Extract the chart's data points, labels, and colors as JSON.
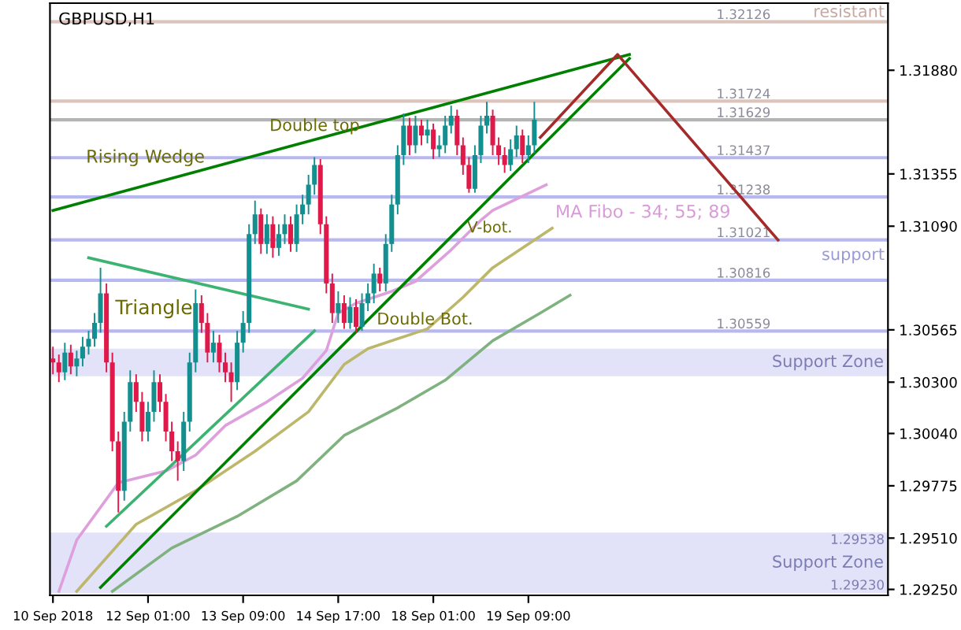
{
  "chart_data": {
    "type": "candlestick",
    "title": "GBPUSD,H1",
    "categories": [
      "10 Sep 2018",
      null,
      null,
      null,
      null,
      null,
      null,
      null,
      null,
      null,
      null,
      null,
      null,
      null,
      null,
      null,
      "12 Sep 01:00",
      null,
      null,
      null,
      null,
      null,
      null,
      null,
      null,
      null,
      null,
      null,
      null,
      null,
      null,
      null,
      "13 Sep 09:00",
      null,
      null,
      null,
      null,
      null,
      null,
      null,
      null,
      null,
      null,
      null,
      null,
      null,
      null,
      null,
      "14 Sep 17:00",
      null,
      null,
      null,
      null,
      null,
      null,
      null,
      null,
      null,
      null,
      null,
      null,
      null,
      null,
      null,
      "18 Sep 01:00",
      null,
      null,
      null,
      null,
      null,
      null,
      null,
      null,
      null,
      null,
      null,
      null,
      null,
      null,
      null,
      "19 Sep 09:00",
      null,
      null,
      null,
      null,
      null,
      null,
      null,
      null,
      null,
      null,
      null,
      null,
      null,
      null,
      null,
      null,
      null,
      null,
      null,
      null,
      null,
      null,
      null,
      null,
      null,
      null,
      null,
      null,
      null,
      null,
      null,
      null,
      null,
      null,
      null,
      null,
      null,
      null,
      null,
      null,
      null,
      null,
      null,
      null,
      null,
      null,
      null,
      null,
      null,
      null,
      null,
      null,
      null,
      null,
      null,
      null,
      null,
      null,
      null,
      null
    ],
    "ohlc": [
      [
        1.3042,
        1.3048,
        1.3034,
        1.304
      ],
      [
        1.304,
        1.3044,
        1.303,
        1.3035
      ],
      [
        1.3035,
        1.305,
        1.3031,
        1.3045
      ],
      [
        1.3045,
        1.3049,
        1.3034,
        1.3038
      ],
      [
        1.3038,
        1.3046,
        1.3033,
        1.3042
      ],
      [
        1.3042,
        1.3053,
        1.3038,
        1.3048
      ],
      [
        1.3048,
        1.3056,
        1.3044,
        1.3052
      ],
      [
        1.3052,
        1.3065,
        1.3048,
        1.306
      ],
      [
        1.306,
        1.3088,
        1.3055,
        1.3075
      ],
      [
        1.3075,
        1.308,
        1.3035,
        1.304
      ],
      [
        1.304,
        1.3045,
        1.2995,
        1.3
      ],
      [
        1.3,
        1.3005,
        1.2964,
        1.2975
      ],
      [
        1.2975,
        1.3015,
        1.297,
        1.301
      ],
      [
        1.301,
        1.3036,
        1.3005,
        1.303
      ],
      [
        1.303,
        1.3034,
        1.3015,
        1.302
      ],
      [
        1.302,
        1.3025,
        1.3,
        1.3005
      ],
      [
        1.3005,
        1.302,
        1.3,
        1.3015
      ],
      [
        1.3015,
        1.3036,
        1.301,
        1.303
      ],
      [
        1.303,
        1.3034,
        1.3015,
        1.302
      ],
      [
        1.302,
        1.3024,
        1.3,
        1.3005
      ],
      [
        1.3005,
        1.301,
        1.299,
        1.2995
      ],
      [
        1.2995,
        1.3,
        1.298,
        1.299
      ],
      [
        1.299,
        1.3015,
        1.2985,
        1.301
      ],
      [
        1.301,
        1.3045,
        1.3005,
        1.304
      ],
      [
        1.304,
        1.3077,
        1.3035,
        1.307
      ],
      [
        1.307,
        1.3074,
        1.3055,
        1.306
      ],
      [
        1.306,
        1.3065,
        1.304,
        1.3045
      ],
      [
        1.3045,
        1.3056,
        1.304,
        1.305
      ],
      [
        1.305,
        1.3054,
        1.3035,
        1.304
      ],
      [
        1.304,
        1.3045,
        1.303,
        1.3035
      ],
      [
        1.3035,
        1.304,
        1.302,
        1.303
      ],
      [
        1.303,
        1.3056,
        1.3026,
        1.305
      ],
      [
        1.305,
        1.3066,
        1.3045,
        1.306
      ],
      [
        1.306,
        1.311,
        1.3055,
        1.3105
      ],
      [
        1.3105,
        1.3122,
        1.31,
        1.3115
      ],
      [
        1.3115,
        1.3118,
        1.3095,
        1.31
      ],
      [
        1.31,
        1.3115,
        1.3095,
        1.311
      ],
      [
        1.311,
        1.3114,
        1.3093,
        1.3098
      ],
      [
        1.3098,
        1.311,
        1.3094,
        1.3105
      ],
      [
        1.3105,
        1.3115,
        1.31,
        1.311
      ],
      [
        1.311,
        1.3114,
        1.3096,
        1.31
      ],
      [
        1.31,
        1.312,
        1.3096,
        1.3115
      ],
      [
        1.3115,
        1.3125,
        1.311,
        1.312
      ],
      [
        1.312,
        1.3135,
        1.3115,
        1.313
      ],
      [
        1.313,
        1.3144,
        1.3125,
        1.314
      ],
      [
        1.314,
        1.3143,
        1.3105,
        1.311
      ],
      [
        1.311,
        1.3114,
        1.3075,
        1.308
      ],
      [
        1.308,
        1.3085,
        1.306,
        1.3065
      ],
      [
        1.3065,
        1.3076,
        1.306,
        1.307
      ],
      [
        1.307,
        1.3074,
        1.3057,
        1.306
      ],
      [
        1.306,
        1.3073,
        1.3057,
        1.3068
      ],
      [
        1.3068,
        1.3072,
        1.3055,
        1.3058
      ],
      [
        1.3058,
        1.3075,
        1.3056,
        1.307
      ],
      [
        1.307,
        1.308,
        1.3066,
        1.3075
      ],
      [
        1.3075,
        1.309,
        1.307,
        1.3085
      ],
      [
        1.3085,
        1.3088,
        1.3076,
        1.308
      ],
      [
        1.308,
        1.3105,
        1.3076,
        1.31
      ],
      [
        1.31,
        1.3125,
        1.3096,
        1.312
      ],
      [
        1.312,
        1.315,
        1.3115,
        1.3145
      ],
      [
        1.3145,
        1.3166,
        1.314,
        1.316
      ],
      [
        1.316,
        1.3164,
        1.3145,
        1.315
      ],
      [
        1.315,
        1.3165,
        1.3146,
        1.316
      ],
      [
        1.316,
        1.3163,
        1.315,
        1.3155
      ],
      [
        1.3155,
        1.3163,
        1.3151,
        1.3158
      ],
      [
        1.3158,
        1.3161,
        1.3143,
        1.3148
      ],
      [
        1.3148,
        1.3155,
        1.3144,
        1.315
      ],
      [
        1.315,
        1.3165,
        1.3146,
        1.316
      ],
      [
        1.316,
        1.317,
        1.3156,
        1.3165
      ],
      [
        1.3165,
        1.3168,
        1.3145,
        1.315
      ],
      [
        1.315,
        1.3154,
        1.3135,
        1.314
      ],
      [
        1.314,
        1.3144,
        1.3126,
        1.3128
      ],
      [
        1.3128,
        1.315,
        1.3126,
        1.3145
      ],
      [
        1.3145,
        1.3165,
        1.3141,
        1.316
      ],
      [
        1.316,
        1.3172,
        1.3156,
        1.3165
      ],
      [
        1.3165,
        1.3168,
        1.3145,
        1.315
      ],
      [
        1.315,
        1.3154,
        1.314,
        1.3145
      ],
      [
        1.3145,
        1.3149,
        1.3136,
        1.314
      ],
      [
        1.314,
        1.3153,
        1.3137,
        1.3148
      ],
      [
        1.3148,
        1.316,
        1.3144,
        1.3155
      ],
      [
        1.3155,
        1.3158,
        1.3141,
        1.3145
      ],
      [
        1.3145,
        1.3155,
        1.3141,
        1.315
      ],
      [
        1.315,
        1.3172,
        1.3146,
        1.3163
      ],
      null,
      null,
      null,
      null,
      null,
      null,
      null,
      null,
      null,
      null,
      null,
      null,
      null,
      null,
      null,
      null,
      null,
      null,
      null,
      null,
      null,
      null,
      null,
      null,
      null,
      null,
      null,
      null,
      null,
      null,
      null,
      null,
      null,
      null,
      null,
      null,
      null,
      null,
      null,
      null,
      null,
      null,
      null,
      null,
      null,
      null,
      null,
      null,
      null,
      null,
      null,
      null,
      null,
      null,
      null,
      null,
      null,
      null,
      null
    ],
    "colors": [
      "#e0194b",
      "#e0194b",
      "#148f8f",
      "#e0194b",
      "#148f8f",
      "#148f8f",
      "#148f8f",
      "#148f8f",
      "#148f8f",
      "#e0194b",
      "#e0194b",
      "#e0194b",
      "#148f8f",
      "#148f8f",
      "#e0194b",
      "#e0194b",
      "#148f8f",
      "#148f8f",
      "#e0194b",
      "#e0194b",
      "#e0194b",
      "#e0194b",
      "#148f8f",
      "#148f8f",
      "#148f8f",
      "#e0194b",
      "#e0194b",
      "#148f8f",
      "#e0194b",
      "#e0194b",
      "#e0194b",
      "#148f8f",
      "#148f8f",
      "#148f8f",
      "#148f8f",
      "#e0194b",
      "#148f8f",
      "#e0194b",
      "#148f8f",
      "#148f8f",
      "#e0194b",
      "#148f8f",
      "#148f8f",
      "#148f8f",
      "#148f8f",
      "#e0194b",
      "#e0194b",
      "#e0194b",
      "#148f8f",
      "#e0194b",
      "#148f8f",
      "#e0194b",
      "#148f8f",
      "#148f8f",
      "#148f8f",
      "#e0194b",
      "#148f8f",
      "#148f8f",
      "#148f8f",
      "#148f8f",
      "#e0194b",
      "#148f8f",
      "#e0194b",
      "#148f8f",
      "#e0194b",
      "#148f8f",
      "#148f8f",
      "#148f8f",
      "#e0194b",
      "#e0194b",
      "#e0194b",
      "#148f8f",
      "#148f8f",
      "#148f8f",
      "#e0194b",
      "#e0194b",
      "#e0194b",
      "#148f8f",
      "#148f8f",
      "#e0194b",
      "#148f8f",
      "#148f8f",
      null,
      null,
      null,
      null,
      null,
      null,
      null,
      null,
      null,
      null,
      null,
      null,
      null,
      null,
      null,
      null,
      null,
      null,
      null,
      null,
      null,
      null,
      null,
      null,
      null,
      null,
      null,
      null,
      null,
      null,
      null,
      null,
      null,
      null,
      null,
      null,
      null,
      null,
      null,
      null,
      null,
      null,
      null,
      null,
      null,
      null,
      null,
      null,
      null,
      null,
      null,
      null,
      null,
      null,
      null,
      null,
      null,
      null,
      null
    ],
    "series": [
      {
        "type": "line",
        "color": "#dda0dd",
        "values": [
          null,
          1.2924,
          null,
          null,
          1.295,
          null,
          null,
          null,
          null,
          null,
          null,
          1.2979,
          null,
          null,
          null,
          null,
          null,
          null,
          null,
          1.2985,
          null,
          null,
          null,
          null,
          1.2993,
          null,
          null,
          null,
          null,
          1.3008,
          null,
          null,
          null,
          null,
          null,
          null,
          1.302,
          null,
          null,
          null,
          null,
          null,
          1.3032,
          null,
          null,
          null,
          1.3046,
          null,
          1.3065,
          null,
          null,
          1.307,
          null,
          null,
          null,
          null,
          null,
          1.3076,
          null,
          null,
          null,
          1.3081,
          null,
          null,
          null,
          null,
          null,
          1.3097,
          null,
          null,
          null,
          null,
          1.3112,
          null,
          1.3117,
          null,
          null,
          null,
          null,
          null,
          null,
          null,
          null,
          1.313,
          null,
          null,
          null,
          null,
          null,
          null,
          null,
          null,
          null,
          null,
          null,
          null,
          null,
          null,
          null,
          null,
          null,
          null,
          null,
          null,
          null,
          null,
          null,
          null,
          null,
          null,
          null,
          null,
          null,
          null,
          null,
          null,
          null,
          null,
          null,
          null,
          null,
          null,
          null,
          null,
          null,
          null,
          null,
          null,
          null,
          null,
          null,
          null,
          null,
          null,
          null,
          null,
          null,
          null,
          null,
          null,
          null
        ]
      },
      {
        "type": "line",
        "color": "#bdb76b",
        "values": [
          null,
          null,
          null,
          null,
          1.2924,
          null,
          null,
          null,
          null,
          null,
          null,
          null,
          null,
          null,
          1.2958,
          null,
          null,
          null,
          null,
          null,
          null,
          null,
          null,
          null,
          1.2975,
          null,
          null,
          null,
          null,
          null,
          null,
          null,
          null,
          null,
          1.2995,
          null,
          null,
          null,
          null,
          null,
          null,
          null,
          null,
          1.3015,
          null,
          null,
          null,
          null,
          null,
          1.3039,
          null,
          null,
          null,
          1.3047,
          null,
          null,
          null,
          null,
          null,
          null,
          null,
          null,
          null,
          1.3057,
          null,
          null,
          null,
          null,
          null,
          1.3073,
          null,
          null,
          null,
          null,
          1.3088,
          null,
          null,
          null,
          null,
          null,
          null,
          null,
          null,
          null,
          1.3108,
          null,
          null,
          null,
          null,
          null,
          null,
          null,
          null,
          null,
          null,
          null,
          null,
          null,
          null,
          null,
          null,
          null,
          null,
          null,
          null,
          null,
          null,
          null,
          null,
          null,
          null,
          null,
          null,
          null,
          null,
          null,
          null,
          null,
          null,
          null,
          null,
          null,
          null,
          null,
          null,
          null,
          null,
          null,
          null,
          null,
          null,
          null,
          null,
          null,
          null,
          null,
          null,
          null,
          null,
          null,
          null
        ]
      },
      {
        "type": "line",
        "color": "#7fb27f",
        "values": [
          null,
          null,
          null,
          null,
          null,
          null,
          null,
          null,
          null,
          null,
          1.2924,
          null,
          null,
          null,
          null,
          null,
          null,
          null,
          null,
          null,
          1.2946,
          null,
          null,
          null,
          null,
          null,
          null,
          null,
          null,
          null,
          null,
          1.2962,
          null,
          null,
          null,
          null,
          null,
          null,
          null,
          null,
          null,
          1.298,
          null,
          null,
          null,
          null,
          null,
          null,
          null,
          1.3003,
          null,
          null,
          null,
          null,
          null,
          null,
          null,
          null,
          1.3017,
          null,
          null,
          null,
          null,
          null,
          null,
          null,
          1.3031,
          null,
          null,
          null,
          null,
          null,
          null,
          null,
          1.3051,
          null,
          null,
          null,
          null,
          null,
          null,
          null,
          1.3065,
          null,
          null,
          null,
          null,
          1.3074,
          null,
          null,
          null,
          null,
          null,
          null,
          null,
          null,
          null,
          null,
          null,
          null,
          null,
          null,
          null,
          null,
          null,
          null,
          null,
          null,
          null,
          null,
          null,
          null,
          null,
          null,
          null,
          null,
          null,
          null,
          null,
          null,
          null,
          null,
          null,
          null,
          null,
          null,
          null,
          null,
          null,
          null,
          null,
          null,
          null,
          null,
          null,
          null,
          null,
          null,
          null,
          null,
          null
        ]
      },
      {
        "type": "line",
        "color": "#008000",
        "values": [
          1.3117,
          null,
          null,
          null,
          null,
          null,
          null,
          null,
          null,
          null,
          null,
          null,
          null,
          null,
          null,
          null,
          null,
          null,
          null,
          null,
          null,
          null,
          null,
          null,
          null,
          null,
          null,
          null,
          null,
          null,
          null,
          null,
          null,
          null,
          null,
          null,
          null,
          null,
          null,
          null,
          null,
          null,
          null,
          null,
          null,
          null,
          null,
          null,
          null,
          null,
          null,
          null,
          null,
          null,
          null,
          null,
          null,
          null,
          null,
          null,
          null,
          null,
          null,
          null,
          null,
          null,
          null,
          null,
          null,
          null,
          null,
          null,
          null,
          null,
          null,
          null,
          null,
          null,
          null,
          null,
          null,
          null,
          null,
          null,
          null,
          null,
          null,
          null,
          null,
          null,
          null,
          null,
          null,
          null,
          null,
          null,
          null,
          1.3196,
          null,
          null,
          null,
          null,
          null,
          null,
          null,
          null,
          null,
          null,
          null,
          null,
          null,
          null,
          null,
          null,
          null,
          null,
          null,
          null,
          null,
          null,
          null,
          null,
          null,
          null,
          null,
          null,
          null,
          null,
          null,
          null,
          null,
          null,
          null,
          null,
          null,
          null,
          null,
          null,
          null,
          null,
          null
        ]
      },
      {
        "type": "line",
        "color": "#008000",
        "values": [
          null,
          null,
          null,
          null,
          null,
          null,
          null,
          null,
          1.2926,
          null,
          null,
          null,
          null,
          null,
          null,
          null,
          null,
          null,
          null,
          null,
          null,
          null,
          null,
          null,
          null,
          null,
          null,
          null,
          null,
          null,
          null,
          null,
          null,
          null,
          null,
          null,
          null,
          null,
          null,
          null,
          null,
          null,
          null,
          null,
          null,
          null,
          null,
          null,
          null,
          null,
          null,
          null,
          null,
          null,
          null,
          null,
          null,
          null,
          null,
          null,
          null,
          null,
          null,
          null,
          null,
          null,
          null,
          null,
          null,
          null,
          null,
          null,
          null,
          null,
          null,
          null,
          null,
          null,
          null,
          null,
          null,
          null,
          null,
          null,
          null,
          null,
          null,
          null,
          null,
          null,
          null,
          null,
          null,
          null,
          null,
          null,
          null,
          1.3194,
          null,
          null,
          null,
          null,
          null,
          null,
          null,
          null,
          null,
          null,
          null,
          null,
          null,
          null,
          null,
          null,
          null,
          null,
          null,
          null,
          null,
          null,
          null,
          null,
          null,
          null,
          null,
          null,
          null,
          null,
          null,
          null,
          null,
          null,
          null,
          null,
          null,
          null,
          null,
          null,
          null,
          null,
          null
        ]
      },
      {
        "type": "line",
        "color": "#3cb371",
        "values": [
          null,
          null,
          null,
          null,
          null,
          null,
          1.3093,
          null,
          null,
          null,
          null,
          null,
          null,
          null,
          null,
          null,
          null,
          null,
          null,
          null,
          null,
          null,
          null,
          null,
          null,
          null,
          null,
          null,
          null,
          null,
          null,
          null,
          null,
          null,
          null,
          null,
          null,
          null,
          null,
          null,
          null,
          null,
          null,
          1.3067,
          null,
          null,
          null,
          null,
          null,
          null,
          null,
          null,
          null,
          null,
          null,
          null,
          null,
          null,
          null,
          null,
          null,
          null,
          null,
          null,
          null,
          null,
          null,
          null,
          null,
          null,
          null,
          null,
          null,
          null,
          null,
          null,
          null,
          null,
          null,
          null,
          null,
          null,
          null,
          null,
          null,
          null,
          null,
          null,
          null,
          null,
          null,
          null,
          null,
          null,
          null,
          null,
          null,
          null,
          null,
          null,
          null,
          null,
          null,
          null,
          null,
          null,
          null,
          null,
          null,
          null,
          null,
          null,
          null,
          null,
          null,
          null,
          null,
          null,
          null,
          null,
          null,
          null,
          null,
          null,
          null,
          null,
          null,
          null,
          null,
          null,
          null,
          null,
          null,
          null,
          null,
          null,
          null,
          null,
          null,
          null,
          null
        ]
      },
      {
        "type": "line",
        "color": "#3cb371",
        "values": [
          null,
          null,
          null,
          null,
          null,
          null,
          null,
          null,
          null,
          1.2957,
          null,
          null,
          null,
          null,
          null,
          null,
          null,
          null,
          null,
          null,
          null,
          null,
          null,
          null,
          null,
          null,
          null,
          null,
          null,
          null,
          null,
          null,
          null,
          null,
          null,
          null,
          null,
          null,
          null,
          null,
          null,
          null,
          null,
          null,
          1.3056,
          null,
          null,
          null,
          null,
          null,
          null,
          null,
          null,
          null,
          null,
          null,
          null,
          null,
          null,
          null,
          null,
          null,
          null,
          null,
          null,
          null,
          null,
          null,
          null,
          null,
          null,
          null,
          null,
          null,
          null,
          null,
          null,
          null,
          null,
          null,
          null,
          null,
          null,
          null,
          null,
          null,
          null,
          null,
          null,
          null,
          null,
          null,
          null,
          null,
          null,
          null,
          null,
          null,
          null,
          null,
          null,
          null,
          null,
          null,
          null,
          null,
          null,
          null,
          null,
          null,
          null,
          null,
          null,
          null,
          null,
          null,
          null,
          null,
          null,
          null,
          null,
          null,
          null,
          null,
          null,
          null,
          null,
          null,
          null,
          null,
          null,
          null,
          null,
          null,
          null,
          null,
          null,
          null,
          null,
          null,
          null
        ]
      },
      {
        "type": "line",
        "color": "#a52a2a",
        "values": [
          null,
          null,
          null,
          null,
          null,
          null,
          null,
          null,
          null,
          null,
          null,
          null,
          null,
          null,
          null,
          null,
          null,
          null,
          null,
          null,
          null,
          null,
          null,
          null,
          null,
          null,
          null,
          null,
          null,
          null,
          null,
          null,
          null,
          null,
          null,
          null,
          null,
          null,
          null,
          null,
          null,
          null,
          null,
          null,
          null,
          null,
          null,
          null,
          null,
          null,
          null,
          null,
          null,
          null,
          null,
          null,
          null,
          null,
          null,
          null,
          null,
          null,
          null,
          null,
          null,
          null,
          null,
          null,
          null,
          null,
          null,
          null,
          null,
          null,
          null,
          null,
          null,
          null,
          null,
          null,
          null,
          null,
          1.3154,
          null,
          null,
          null,
          null,
          null,
          null,
          null,
          null,
          null,
          null,
          null,
          null,
          1.3196,
          null,
          null,
          null,
          null,
          null,
          null,
          null,
          null,
          null,
          null,
          null,
          null,
          null,
          null,
          null,
          null,
          null,
          null,
          null,
          null,
          null,
          null,
          null,
          null,
          null,
          null,
          1.3102,
          null,
          null,
          null,
          null,
          null,
          null,
          null,
          null,
          null,
          null,
          null,
          null,
          null,
          null,
          null,
          null,
          null,
          null
        ]
      }
    ],
    "ylim": [
      1.2922,
      1.3222
    ],
    "yticks": [
      {
        "value": 1.2925,
        "label": "1.29250"
      },
      {
        "value": 1.2951,
        "label": "1.29510"
      },
      {
        "value": 1.29775,
        "label": "1.29775"
      },
      {
        "value": 1.3004,
        "label": "1.30040"
      },
      {
        "value": 1.303,
        "label": "1.30300"
      },
      {
        "value": 1.30565,
        "label": "1.30565"
      },
      {
        "value": 1.3109,
        "label": "1.31090"
      },
      {
        "value": 1.31355,
        "label": "1.31355"
      },
      {
        "value": 1.3188,
        "label": "1.31880"
      }
    ],
    "ref_lines": [
      {
        "axis": "y",
        "value": 1.32126,
        "label": "1.32126",
        "color": "#dcc4bc"
      },
      {
        "axis": "y",
        "value": 1.31724,
        "label": "1.31724",
        "color": "#dcc4bc"
      },
      {
        "axis": "y",
        "value": 1.31629,
        "label": "1.31629",
        "color": "#b4b4b4"
      },
      {
        "axis": "y",
        "value": 1.31437,
        "label": "1.31437",
        "color": "#b8b8f0"
      },
      {
        "axis": "y",
        "value": 1.31238,
        "label": "1.31238",
        "color": "#b8b8f0"
      },
      {
        "axis": "y",
        "value": 1.31021,
        "label": "1.31021",
        "color": "#b8b8f0"
      },
      {
        "axis": "y",
        "value": 1.30816,
        "label": "1.30816",
        "color": "#b8b8f0"
      },
      {
        "axis": "y",
        "value": 1.30559,
        "label": "1.30559",
        "color": "#b8b8f0"
      }
    ],
    "bands": [
      {
        "axis": "y",
        "from": 1.3033,
        "to": 1.3047,
        "label": "Support Zone",
        "color": "#e2e2f8"
      },
      {
        "axis": "y",
        "from": 1.2923,
        "to": 1.29538,
        "label": "Support Zone",
        "color": "#e2e2f8"
      }
    ],
    "annotations": [
      "Rising Wedge",
      "Double top",
      "Triangle",
      "Double Bot.",
      "V-bot.",
      "MA Fibo - 34; 55; 89",
      "resistant",
      "support",
      "1.29538",
      "1.29230"
    ],
    "grid": false,
    "legend": false
  }
}
